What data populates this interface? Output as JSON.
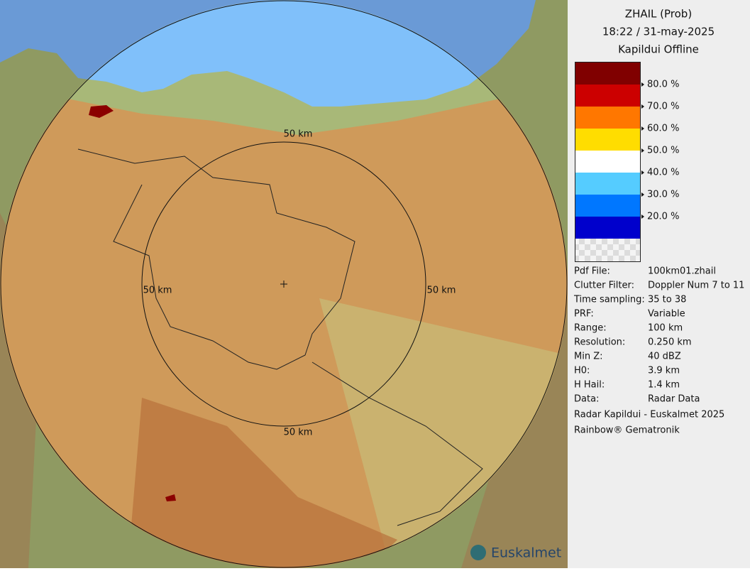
{
  "header": {
    "title": "ZHAIL (Prob)",
    "datetime": "18:22 / 31-may-2025",
    "status": "Kapildui Offline"
  },
  "legend": {
    "items": [
      {
        "label": "80.0 %",
        "color": "#800000"
      },
      {
        "label": "70.0 %",
        "color": "#cc0000"
      },
      {
        "label": "60.0 %",
        "color": "#ff7700"
      },
      {
        "label": "50.0 %",
        "color": "#ffdd00"
      },
      {
        "label": "40.0 %",
        "color": "#ffffff"
      },
      {
        "label": "30.0 %",
        "color": "#55ccff"
      },
      {
        "label": "20.0 %",
        "color": "#0077ff"
      },
      {
        "label": null,
        "color": "#0000cc"
      }
    ]
  },
  "info": {
    "rows": [
      [
        "Pdf File:",
        "100km01.zhail"
      ],
      [
        "Clutter Filter:",
        "Doppler Num 7 to 11"
      ],
      [
        "Time sampling:",
        "35 to 38"
      ],
      [
        "PRF:",
        "Variable"
      ],
      [
        "Range:",
        "100 km"
      ],
      [
        "Resolution:",
        "0.250 km"
      ],
      [
        "Min Z:",
        "40 dBZ"
      ],
      [
        "H0:",
        "3.9 km"
      ],
      [
        "H Hail:",
        "1.4 km"
      ],
      [
        "Data:",
        "Radar Data"
      ]
    ]
  },
  "footer": {
    "credit": "Radar Kapildui - Euskalmet 2025",
    "vendor": "Rainbow® Gematronik"
  },
  "map": {
    "range_labels": [
      "50 km",
      "50 km",
      "50 km",
      "50 km"
    ],
    "logo": "Euskalmet"
  }
}
